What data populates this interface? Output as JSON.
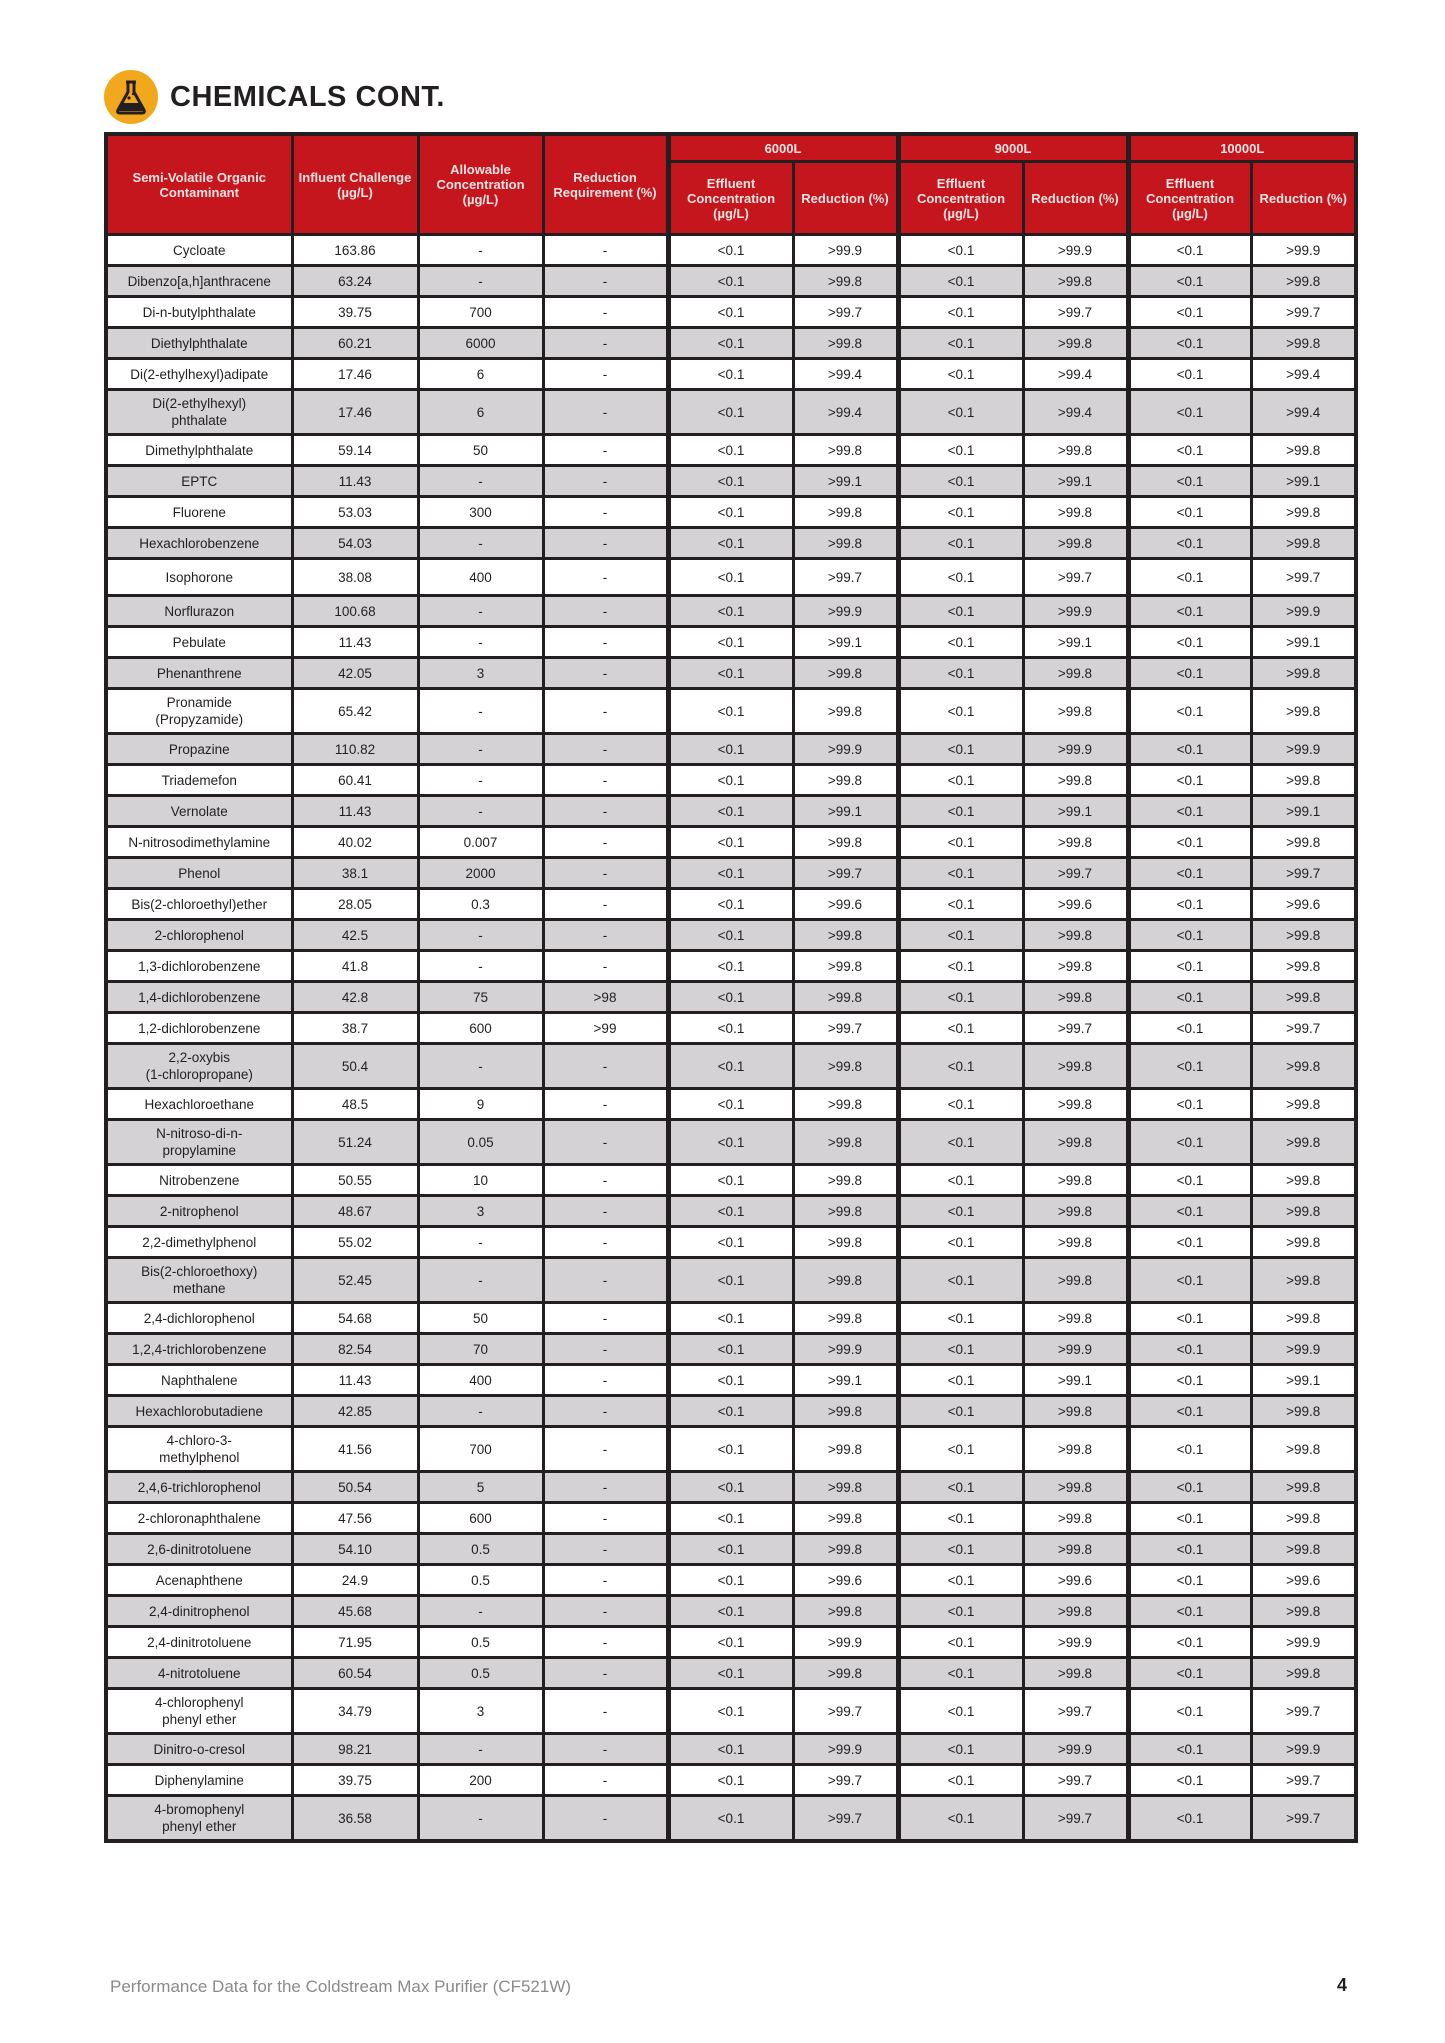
{
  "header": {
    "title": "CHEMICALS CONT.",
    "icon": "flask-icon",
    "icon_color": "#f2a81d"
  },
  "table": {
    "header_color": "#c4161c",
    "columns": {
      "contaminant": "Semi-Volatile Organic Contaminant",
      "influent": "Influent Challenge (µg/L)",
      "allowable": "Allowable Concentration (µg/L)",
      "requirement": "Reduction Requirement (%)",
      "effluent": "Effluent Concentration (µg/L)",
      "reduction": "Reduction (%)"
    },
    "groups": [
      "6000L",
      "9000L",
      "10000L"
    ],
    "rows": [
      [
        "Cycloate",
        "163.86",
        "-",
        "-",
        "<0.1",
        ">99.9",
        "<0.1",
        ">99.9",
        "<0.1",
        ">99.9"
      ],
      [
        "Dibenzo[a,h]anthracene",
        "63.24",
        "-",
        "-",
        "<0.1",
        ">99.8",
        "<0.1",
        ">99.8",
        "<0.1",
        ">99.8"
      ],
      [
        "Di-n-butylphthalate",
        "39.75",
        "700",
        "-",
        "<0.1",
        ">99.7",
        "<0.1",
        ">99.7",
        "<0.1",
        ">99.7"
      ],
      [
        "Diethylphthalate",
        "60.21",
        "6000",
        "-",
        "<0.1",
        ">99.8",
        "<0.1",
        ">99.8",
        "<0.1",
        ">99.8"
      ],
      [
        "Di(2-ethylhexyl)adipate",
        "17.46",
        "6",
        "-",
        "<0.1",
        ">99.4",
        "<0.1",
        ">99.4",
        "<0.1",
        ">99.4"
      ],
      [
        "Di(2-ethylhexyl)\nphthalate",
        "17.46",
        "6",
        "-",
        "<0.1",
        ">99.4",
        "<0.1",
        ">99.4",
        "<0.1",
        ">99.4"
      ],
      [
        "Dimethylphthalate",
        "59.14",
        "50",
        "-",
        "<0.1",
        ">99.8",
        "<0.1",
        ">99.8",
        "<0.1",
        ">99.8"
      ],
      [
        "EPTC",
        "11.43",
        "-",
        "-",
        "<0.1",
        ">99.1",
        "<0.1",
        ">99.1",
        "<0.1",
        ">99.1"
      ],
      [
        "Fluorene",
        "53.03",
        "300",
        "-",
        "<0.1",
        ">99.8",
        "<0.1",
        ">99.8",
        "<0.1",
        ">99.8"
      ],
      [
        "Hexachlorobenzene",
        "54.03",
        "-",
        "-",
        "<0.1",
        ">99.8",
        "<0.1",
        ">99.8",
        "<0.1",
        ">99.8"
      ],
      [
        "Isophorone",
        "38.08",
        "400",
        "-",
        "<0.1",
        ">99.7",
        "<0.1",
        ">99.7",
        "<0.1",
        ">99.7"
      ],
      [
        "Norflurazon",
        "100.68",
        "-",
        "-",
        "<0.1",
        ">99.9",
        "<0.1",
        ">99.9",
        "<0.1",
        ">99.9"
      ],
      [
        "Pebulate",
        "11.43",
        "-",
        "-",
        "<0.1",
        ">99.1",
        "<0.1",
        ">99.1",
        "<0.1",
        ">99.1"
      ],
      [
        "Phenanthrene",
        "42.05",
        "3",
        "-",
        "<0.1",
        ">99.8",
        "<0.1",
        ">99.8",
        "<0.1",
        ">99.8"
      ],
      [
        "Pronamide\n(Propyzamide)",
        "65.42",
        "-",
        "-",
        "<0.1",
        ">99.8",
        "<0.1",
        ">99.8",
        "<0.1",
        ">99.8"
      ],
      [
        "Propazine",
        "110.82",
        "-",
        "-",
        "<0.1",
        ">99.9",
        "<0.1",
        ">99.9",
        "<0.1",
        ">99.9"
      ],
      [
        "Triademefon",
        "60.41",
        "-",
        "-",
        "<0.1",
        ">99.8",
        "<0.1",
        ">99.8",
        "<0.1",
        ">99.8"
      ],
      [
        "Vernolate",
        "11.43",
        "-",
        "-",
        "<0.1",
        ">99.1",
        "<0.1",
        ">99.1",
        "<0.1",
        ">99.1"
      ],
      [
        "N-nitrosodimethylamine",
        "40.02",
        "0.007",
        "-",
        "<0.1",
        ">99.8",
        "<0.1",
        ">99.8",
        "<0.1",
        ">99.8"
      ],
      [
        "Phenol",
        "38.1",
        "2000",
        "-",
        "<0.1",
        ">99.7",
        "<0.1",
        ">99.7",
        "<0.1",
        ">99.7"
      ],
      [
        "Bis(2-chloroethyl)ether",
        "28.05",
        "0.3",
        "-",
        "<0.1",
        ">99.6",
        "<0.1",
        ">99.6",
        "<0.1",
        ">99.6"
      ],
      [
        "2-chlorophenol",
        "42.5",
        "-",
        "-",
        "<0.1",
        ">99.8",
        "<0.1",
        ">99.8",
        "<0.1",
        ">99.8"
      ],
      [
        "1,3-dichlorobenzene",
        "41.8",
        "-",
        "-",
        "<0.1",
        ">99.8",
        "<0.1",
        ">99.8",
        "<0.1",
        ">99.8"
      ],
      [
        "1,4-dichlorobenzene",
        "42.8",
        "75",
        ">98",
        "<0.1",
        ">99.8",
        "<0.1",
        ">99.8",
        "<0.1",
        ">99.8"
      ],
      [
        "1,2-dichlorobenzene",
        "38.7",
        "600",
        ">99",
        "<0.1",
        ">99.7",
        "<0.1",
        ">99.7",
        "<0.1",
        ">99.7"
      ],
      [
        "2,2-oxybis\n(1-chloropropane)",
        "50.4",
        "-",
        "-",
        "<0.1",
        ">99.8",
        "<0.1",
        ">99.8",
        "<0.1",
        ">99.8"
      ],
      [
        "Hexachloroethane",
        "48.5",
        "9",
        "-",
        "<0.1",
        ">99.8",
        "<0.1",
        ">99.8",
        "<0.1",
        ">99.8"
      ],
      [
        "N-nitroso-di-n-\npropylamine",
        "51.24",
        "0.05",
        "-",
        "<0.1",
        ">99.8",
        "<0.1",
        ">99.8",
        "<0.1",
        ">99.8"
      ],
      [
        "Nitrobenzene",
        "50.55",
        "10",
        "-",
        "<0.1",
        ">99.8",
        "<0.1",
        ">99.8",
        "<0.1",
        ">99.8"
      ],
      [
        "2-nitrophenol",
        "48.67",
        "3",
        "-",
        "<0.1",
        ">99.8",
        "<0.1",
        ">99.8",
        "<0.1",
        ">99.8"
      ],
      [
        "2,2-dimethylphenol",
        "55.02",
        "-",
        "-",
        "<0.1",
        ">99.8",
        "<0.1",
        ">99.8",
        "<0.1",
        ">99.8"
      ],
      [
        "Bis(2-chloroethoxy)\nmethane",
        "52.45",
        "-",
        "-",
        "<0.1",
        ">99.8",
        "<0.1",
        ">99.8",
        "<0.1",
        ">99.8"
      ],
      [
        "2,4-dichlorophenol",
        "54.68",
        "50",
        "-",
        "<0.1",
        ">99.8",
        "<0.1",
        ">99.8",
        "<0.1",
        ">99.8"
      ],
      [
        "1,2,4-trichlorobenzene",
        "82.54",
        "70",
        "-",
        "<0.1",
        ">99.9",
        "<0.1",
        ">99.9",
        "<0.1",
        ">99.9"
      ],
      [
        "Naphthalene",
        "11.43",
        "400",
        "-",
        "<0.1",
        ">99.1",
        "<0.1",
        ">99.1",
        "<0.1",
        ">99.1"
      ],
      [
        "Hexachlorobutadiene",
        "42.85",
        "-",
        "-",
        "<0.1",
        ">99.8",
        "<0.1",
        ">99.8",
        "<0.1",
        ">99.8"
      ],
      [
        "4-chloro-3-\nmethylphenol",
        "41.56",
        "700",
        "-",
        "<0.1",
        ">99.8",
        "<0.1",
        ">99.8",
        "<0.1",
        ">99.8"
      ],
      [
        "2,4,6-trichlorophenol",
        "50.54",
        "5",
        "-",
        "<0.1",
        ">99.8",
        "<0.1",
        ">99.8",
        "<0.1",
        ">99.8"
      ],
      [
        "2-chloronaphthalene",
        "47.56",
        "600",
        "-",
        "<0.1",
        ">99.8",
        "<0.1",
        ">99.8",
        "<0.1",
        ">99.8"
      ],
      [
        "2,6-dinitrotoluene",
        "54.10",
        "0.5",
        "-",
        "<0.1",
        ">99.8",
        "<0.1",
        ">99.8",
        "<0.1",
        ">99.8"
      ],
      [
        "Acenaphthene",
        "24.9",
        "0.5",
        "-",
        "<0.1",
        ">99.6",
        "<0.1",
        ">99.6",
        "<0.1",
        ">99.6"
      ],
      [
        "2,4-dinitrophenol",
        "45.68",
        "-",
        "-",
        "<0.1",
        ">99.8",
        "<0.1",
        ">99.8",
        "<0.1",
        ">99.8"
      ],
      [
        "2,4-dinitrotoluene",
        "71.95",
        "0.5",
        "-",
        "<0.1",
        ">99.9",
        "<0.1",
        ">99.9",
        "<0.1",
        ">99.9"
      ],
      [
        "4-nitrotoluene",
        "60.54",
        "0.5",
        "-",
        "<0.1",
        ">99.8",
        "<0.1",
        ">99.8",
        "<0.1",
        ">99.8"
      ],
      [
        "4-chlorophenyl\nphenyl ether",
        "34.79",
        "3",
        "-",
        "<0.1",
        ">99.7",
        "<0.1",
        ">99.7",
        "<0.1",
        ">99.7"
      ],
      [
        "Dinitro-o-cresol",
        "98.21",
        "-",
        "-",
        "<0.1",
        ">99.9",
        "<0.1",
        ">99.9",
        "<0.1",
        ">99.9"
      ],
      [
        "Diphenylamine",
        "39.75",
        "200",
        "-",
        "<0.1",
        ">99.7",
        "<0.1",
        ">99.7",
        "<0.1",
        ">99.7"
      ],
      [
        "4-bromophenyl\nphenyl ether",
        "36.58",
        "-",
        "-",
        "<0.1",
        ">99.7",
        "<0.1",
        ">99.7",
        "<0.1",
        ">99.7"
      ]
    ]
  },
  "footer": {
    "text": "Performance Data for the Coldstream Max Purifier (CF521W)",
    "page_number": "4"
  }
}
